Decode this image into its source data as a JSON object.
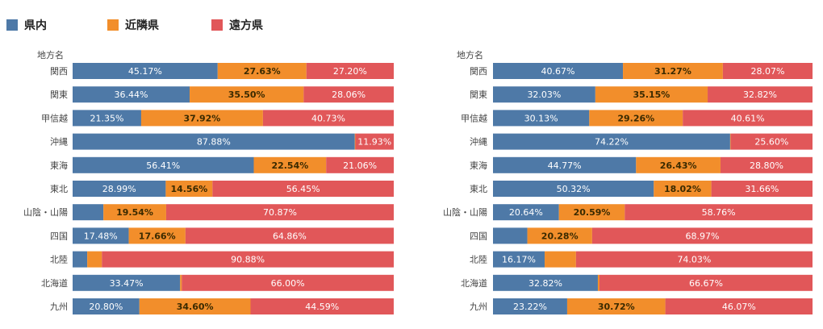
{
  "legend": [
    {
      "name": "県内",
      "color": "#4e79a7"
    },
    {
      "name": "近隣県",
      "color": "#f28e2b"
    },
    {
      "name": "遠方県",
      "color": "#e15759"
    }
  ],
  "chart_data": [
    {
      "type": "bar",
      "orientation": "horizontal",
      "stacked": true,
      "percent": true,
      "ylabel": "地方名",
      "categories": [
        "関西",
        "関東",
        "甲信越",
        "沖縄",
        "東海",
        "東北",
        "山陰・山陽",
        "四国",
        "北陸",
        "北海道",
        "九州"
      ],
      "series": [
        {
          "name": "県内",
          "values": [
            45.17,
            36.44,
            21.35,
            87.88,
            56.41,
            28.99,
            9.59,
            17.48,
            4.55,
            33.47,
            20.8
          ],
          "labels": [
            "45.17%",
            "36.44%",
            "21.35%",
            "87.88%",
            "56.41%",
            "28.99%",
            "",
            "17.48%",
            "",
            "33.47%",
            "20.80%"
          ]
        },
        {
          "name": "近隣県",
          "values": [
            27.63,
            35.5,
            37.92,
            0.19,
            22.54,
            14.56,
            19.54,
            17.66,
            4.57,
            0.53,
            34.6
          ],
          "labels": [
            "27.63%",
            "35.50%",
            "37.92%",
            "",
            "22.54%",
            "14.56%",
            "19.54%",
            "17.66%",
            "",
            "",
            "34.60%"
          ]
        },
        {
          "name": "遠方県",
          "values": [
            27.2,
            28.06,
            40.73,
            11.93,
            21.06,
            56.45,
            70.87,
            64.86,
            90.88,
            66.0,
            44.59
          ],
          "labels": [
            "27.20%",
            "28.06%",
            "40.73%",
            "11.93%",
            "21.06%",
            "56.45%",
            "70.87%",
            "64.86%",
            "90.88%",
            "66.00%",
            "44.59%"
          ]
        }
      ]
    },
    {
      "type": "bar",
      "orientation": "horizontal",
      "stacked": true,
      "percent": true,
      "ylabel": "地方名",
      "categories": [
        "関西",
        "関東",
        "甲信越",
        "沖縄",
        "東海",
        "東北",
        "山陰・山陽",
        "四国",
        "北陸",
        "北海道",
        "九州"
      ],
      "series": [
        {
          "name": "県内",
          "values": [
            40.67,
            32.03,
            30.13,
            74.22,
            44.77,
            50.32,
            20.64,
            10.75,
            16.17,
            32.82,
            23.22
          ],
          "labels": [
            "40.67%",
            "32.03%",
            "30.13%",
            "74.22%",
            "44.77%",
            "50.32%",
            "20.64%",
            "",
            "16.17%",
            "32.82%",
            "23.22%"
          ]
        },
        {
          "name": "近隣県",
          "values": [
            31.27,
            35.15,
            29.26,
            0.18,
            26.43,
            18.02,
            20.59,
            20.28,
            9.8,
            0.51,
            30.72
          ],
          "labels": [
            "31.27%",
            "35.15%",
            "29.26%",
            "",
            "26.43%",
            "18.02%",
            "20.59%",
            "20.28%",
            "",
            "",
            "30.72%"
          ]
        },
        {
          "name": "遠方県",
          "values": [
            28.07,
            32.82,
            40.61,
            25.6,
            28.8,
            31.66,
            58.76,
            68.97,
            74.03,
            66.67,
            46.07
          ],
          "labels": [
            "28.07%",
            "32.82%",
            "40.61%",
            "25.60%",
            "28.80%",
            "31.66%",
            "58.76%",
            "68.97%",
            "74.03%",
            "66.67%",
            "46.07%"
          ]
        }
      ]
    }
  ]
}
